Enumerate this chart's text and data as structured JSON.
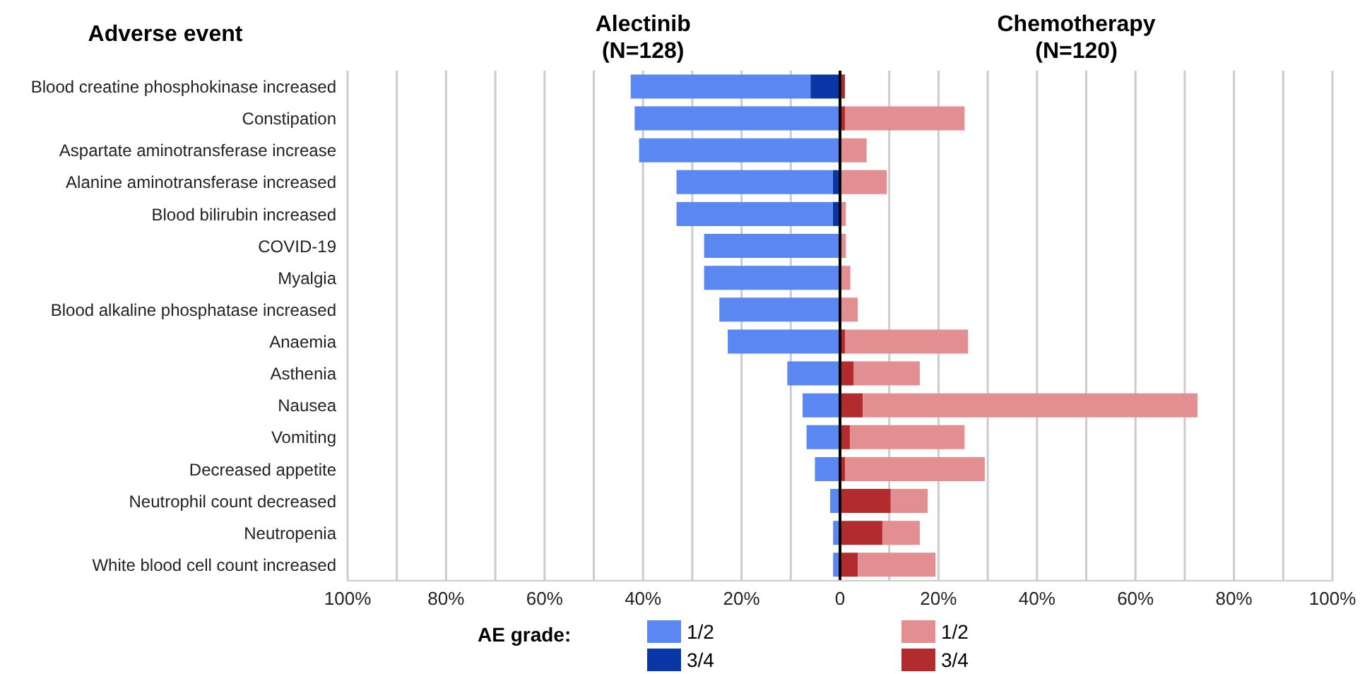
{
  "chart_data": {
    "type": "bar",
    "orientation": "horizontal",
    "stacked": true,
    "ylabel": "Adverse event",
    "annotations": [
      "Alectinib\n(N=128)",
      "Chemotherapy\n(N=120)"
    ],
    "legend_title": "AE grade:",
    "legend": "bottom",
    "grid": "x",
    "categories": [
      "Blood creatine phosphokinase increased",
      "Constipation",
      "Aspartate aminotransferase increase",
      "Alanine aminotransferase increased",
      "Blood bilirubin increased",
      "COVID-19",
      "Myalgia",
      "Blood alkaline phosphatase increased",
      "Anaemia",
      "Asthenia",
      "Nausea",
      "Vomiting",
      "Decreased appetite",
      "Neutrophil count decreased",
      "Neutropenia",
      "White blood cell count increased"
    ],
    "series": [
      {
        "name": "3/4",
        "color": "#0a37a8",
        "values": [
          -6,
          0,
          0,
          -1.5,
          -1.5,
          0,
          0,
          0,
          0,
          0,
          0,
          0,
          0,
          0,
          0,
          0
        ]
      },
      {
        "name": "1/2",
        "color": "#5b87f3",
        "values": [
          -36.5,
          -41.7,
          -40.8,
          -31.7,
          -31.7,
          -27.6,
          -27.6,
          -24.5,
          -22.8,
          -10.7,
          -7.6,
          -6.8,
          -5.1,
          -2,
          -1.4,
          -1.4
        ]
      },
      {
        "name": "3/4",
        "color": "#b22b2e",
        "values": [
          1,
          1,
          0,
          0,
          0,
          0,
          0,
          0,
          1,
          2.8,
          4.6,
          2,
          1,
          10.3,
          8.6,
          3.6
        ]
      },
      {
        "name": "1/2",
        "color": "#e38f91",
        "values": [
          0,
          24.3,
          5.4,
          9.5,
          1.2,
          1.2,
          2.1,
          3.6,
          25,
          13.4,
          68,
          23.3,
          28.4,
          7.5,
          7.6,
          15.8
        ]
      }
    ],
    "xlim": [
      -100,
      100
    ],
    "xticks": [
      {
        "value": -100,
        "label": "100%"
      },
      {
        "value": -90,
        "label": null
      },
      {
        "value": -80,
        "label": "80%"
      },
      {
        "value": -70,
        "label": null
      },
      {
        "value": -60,
        "label": "60%"
      },
      {
        "value": -50,
        "label": null
      },
      {
        "value": -40,
        "label": "40%"
      },
      {
        "value": -30,
        "label": null
      },
      {
        "value": -20,
        "label": "20%"
      },
      {
        "value": -10,
        "label": null
      },
      {
        "value": 0,
        "label": "0"
      },
      {
        "value": 10,
        "label": null
      },
      {
        "value": 20,
        "label": "20%"
      },
      {
        "value": 30,
        "label": null
      },
      {
        "value": 40,
        "label": "40%"
      },
      {
        "value": 50,
        "label": null
      },
      {
        "value": 60,
        "label": "60%"
      },
      {
        "value": 70,
        "label": null
      },
      {
        "value": 80,
        "label": "80%"
      },
      {
        "value": 90,
        "label": null
      },
      {
        "value": 100,
        "label": "100%"
      }
    ],
    "ref_lines": [
      {
        "axis": "x",
        "value": 0,
        "color": "#000000"
      }
    ]
  }
}
